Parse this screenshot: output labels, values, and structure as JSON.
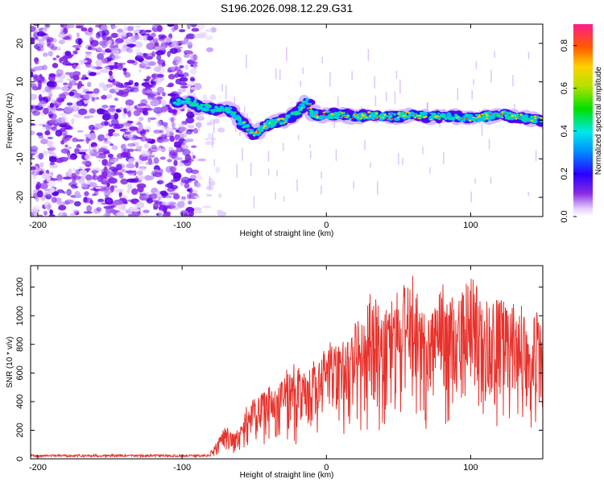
{
  "title": "S196.2026.098.12.29.G31",
  "colors": {
    "trace": "#e8322c",
    "axis": "#000000"
  },
  "chart_data": [
    {
      "type": "heatmap",
      "name": "spectrogram",
      "xlabel": "Height of straight line (km)",
      "ylabel": "Frequency (Hz)",
      "xlim": [
        -205,
        150
      ],
      "ylim": [
        -25,
        25
      ],
      "xticks": [
        -200,
        -100,
        0,
        100
      ],
      "yticks": [
        -20,
        -10,
        0,
        10,
        20
      ],
      "ridge": {
        "x": [
          -105,
          -100,
          -95,
          -90,
          -85,
          -80,
          -75,
          -70,
          -65,
          -60,
          -55,
          -50,
          -45,
          -40,
          -35,
          -30,
          -25,
          -20,
          -15,
          -12,
          -10,
          -5,
          0,
          10,
          20,
          30,
          40,
          50,
          60,
          70,
          80,
          90,
          100,
          110,
          120,
          130,
          140,
          150
        ],
        "y": [
          4.5,
          5,
          5,
          4,
          3.5,
          3,
          2.5,
          3,
          2,
          0,
          -2,
          -4,
          -2,
          -1,
          -0.5,
          0,
          1,
          2,
          4.5,
          5,
          2,
          1,
          1.5,
          1.5,
          1,
          1.5,
          1,
          1,
          1.5,
          1,
          1,
          1,
          0.5,
          1,
          1.5,
          1,
          0.5,
          0
        ]
      },
      "colorbar": {
        "label": "Normalized spectral amplitude",
        "range": [
          0,
          0.9
        ],
        "ticks": [
          "0.0",
          "0.2",
          "0.4",
          "0.6",
          "0.8"
        ]
      }
    },
    {
      "type": "line",
      "name": "snr",
      "xlabel": "Height of straight line (km)",
      "ylabel": "SNR (10 * v/v)",
      "xlim": [
        -205,
        150
      ],
      "ylim": [
        0,
        1350
      ],
      "xticks": [
        -200,
        -100,
        0,
        100
      ],
      "yticks": [
        0,
        200,
        400,
        600,
        800,
        1000,
        1200
      ],
      "series": [
        {
          "name": "SNR",
          "envelope_x": [
            -205,
            -90,
            -80,
            -75,
            -70,
            -65,
            -60,
            -55,
            -50,
            -45,
            -40,
            -35,
            -30,
            -25,
            -20,
            -15,
            -10,
            -5,
            0,
            5,
            10,
            15,
            20,
            25,
            30,
            40,
            50,
            60,
            70,
            80,
            90,
            100,
            110,
            120,
            130,
            140,
            150
          ],
          "envelope_y": [
            25,
            30,
            60,
            140,
            250,
            180,
            200,
            380,
            420,
            450,
            520,
            480,
            560,
            650,
            620,
            600,
            700,
            680,
            850,
            780,
            820,
            900,
            960,
            1000,
            1100,
            1050,
            1120,
            1250,
            1050,
            1180,
            1120,
            1220,
            1150,
            1130,
            1050,
            1080,
            1000
          ]
        }
      ]
    }
  ]
}
